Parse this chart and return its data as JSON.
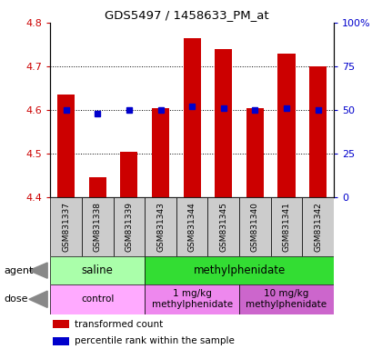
{
  "title": "GDS5497 / 1458633_PM_at",
  "samples": [
    "GSM831337",
    "GSM831338",
    "GSM831339",
    "GSM831343",
    "GSM831344",
    "GSM831345",
    "GSM831340",
    "GSM831341",
    "GSM831342"
  ],
  "bar_values": [
    4.635,
    4.445,
    4.505,
    4.605,
    4.765,
    4.74,
    4.605,
    4.73,
    4.7
  ],
  "percentile_values": [
    50,
    48,
    50,
    50,
    52,
    51,
    50,
    51,
    50
  ],
  "ylim_left": [
    4.4,
    4.8
  ],
  "ylim_right": [
    0,
    100
  ],
  "yticks_left": [
    4.4,
    4.5,
    4.6,
    4.7,
    4.8
  ],
  "yticks_right": [
    0,
    25,
    50,
    75,
    100
  ],
  "ytick_right_labels": [
    "0",
    "25",
    "50",
    "75",
    "100%"
  ],
  "bar_color": "#cc0000",
  "dot_color": "#0000cc",
  "bar_bottom": 4.4,
  "agent_groups": [
    {
      "label": "saline",
      "start": 0,
      "end": 3,
      "color": "#aaffaa"
    },
    {
      "label": "methylphenidate",
      "start": 3,
      "end": 9,
      "color": "#33dd33"
    }
  ],
  "dose_groups": [
    {
      "label": "control",
      "start": 0,
      "end": 3,
      "color": "#ffaaff"
    },
    {
      "label": "1 mg/kg\nmethylphenidate",
      "start": 3,
      "end": 6,
      "color": "#ee88ee"
    },
    {
      "label": "10 mg/kg\nmethylphenidate",
      "start": 6,
      "end": 9,
      "color": "#cc66cc"
    }
  ],
  "agent_label": "agent",
  "dose_label": "dose",
  "legend_items": [
    {
      "color": "#cc0000",
      "label": "transformed count"
    },
    {
      "color": "#0000cc",
      "label": "percentile rank within the sample"
    }
  ],
  "bg_color": "#ffffff",
  "plot_bg_color": "#ffffff",
  "tick_color_left": "#cc0000",
  "tick_color_right": "#0000cc",
  "sample_bg_color": "#cccccc",
  "arrow_color": "#888888",
  "grid_yticks": [
    4.5,
    4.6,
    4.7
  ],
  "figsize": [
    4.1,
    3.84
  ],
  "dpi": 100
}
